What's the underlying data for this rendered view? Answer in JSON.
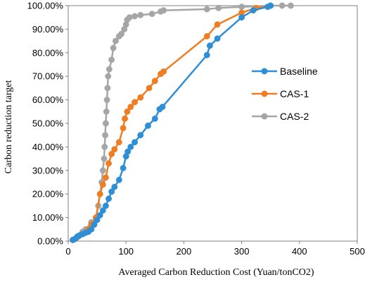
{
  "chart_data": {
    "type": "line",
    "title": "",
    "xlabel": "Averaged  Carbon Reduction Cost (Yuan/tonCO2)",
    "ylabel": "Carbon reduction target",
    "xlim": [
      0,
      500
    ],
    "ylim": [
      0,
      1
    ],
    "x_ticks": [
      "0",
      "100",
      "200",
      "300",
      "400",
      "500"
    ],
    "y_ticks": [
      "0.00%",
      "10.00%",
      "20.00%",
      "30.00%",
      "40.00%",
      "50.00%",
      "60.00%",
      "70.00%",
      "80.00%",
      "90.00%",
      "100.00%"
    ],
    "grid": false,
    "legend_position": "right",
    "series": [
      {
        "name": "Baseline",
        "color": "#2e8fd6",
        "points": [
          [
            8,
            0.005
          ],
          [
            12,
            0.01
          ],
          [
            16,
            0.02
          ],
          [
            20,
            0.025
          ],
          [
            25,
            0.03
          ],
          [
            30,
            0.035
          ],
          [
            35,
            0.04
          ],
          [
            40,
            0.05
          ],
          [
            45,
            0.07
          ],
          [
            50,
            0.09
          ],
          [
            55,
            0.11
          ],
          [
            60,
            0.13
          ],
          [
            65,
            0.15
          ],
          [
            70,
            0.18
          ],
          [
            75,
            0.21
          ],
          [
            80,
            0.23
          ],
          [
            88,
            0.26
          ],
          [
            95,
            0.31
          ],
          [
            100,
            0.36
          ],
          [
            103,
            0.38
          ],
          [
            108,
            0.4
          ],
          [
            115,
            0.42
          ],
          [
            125,
            0.45
          ],
          [
            138,
            0.49
          ],
          [
            150,
            0.52
          ],
          [
            158,
            0.56
          ],
          [
            163,
            0.57
          ],
          [
            240,
            0.79
          ],
          [
            245,
            0.83
          ],
          [
            258,
            0.86
          ],
          [
            300,
            0.95
          ],
          [
            320,
            0.98
          ],
          [
            345,
            0.995
          ],
          [
            350,
            1.0
          ]
        ]
      },
      {
        "name": "CAS-1",
        "color": "#ef7d22",
        "points": [
          [
            8,
            0.005
          ],
          [
            15,
            0.015
          ],
          [
            25,
            0.03
          ],
          [
            35,
            0.05
          ],
          [
            40,
            0.07
          ],
          [
            48,
            0.1
          ],
          [
            55,
            0.2
          ],
          [
            60,
            0.24
          ],
          [
            65,
            0.27
          ],
          [
            70,
            0.33
          ],
          [
            75,
            0.37
          ],
          [
            80,
            0.39
          ],
          [
            88,
            0.42
          ],
          [
            95,
            0.48
          ],
          [
            98,
            0.52
          ],
          [
            102,
            0.55
          ],
          [
            108,
            0.57
          ],
          [
            115,
            0.59
          ],
          [
            125,
            0.61
          ],
          [
            140,
            0.65
          ],
          [
            150,
            0.68
          ],
          [
            160,
            0.71
          ],
          [
            165,
            0.72
          ],
          [
            240,
            0.87
          ],
          [
            258,
            0.92
          ],
          [
            300,
            0.97
          ],
          [
            325,
            0.99
          ],
          [
            350,
            1.0
          ]
        ]
      },
      {
        "name": "CAS-2",
        "color": "#a6a6a6",
        "points": [
          [
            8,
            0.005
          ],
          [
            12,
            0.01
          ],
          [
            18,
            0.02
          ],
          [
            25,
            0.04
          ],
          [
            30,
            0.05
          ],
          [
            40,
            0.08
          ],
          [
            48,
            0.1
          ],
          [
            52,
            0.15
          ],
          [
            55,
            0.2
          ],
          [
            58,
            0.25
          ],
          [
            60,
            0.3
          ],
          [
            62,
            0.35
          ],
          [
            63,
            0.4
          ],
          [
            64,
            0.45
          ],
          [
            65,
            0.5
          ],
          [
            66,
            0.55
          ],
          [
            67,
            0.6
          ],
          [
            68,
            0.65
          ],
          [
            69,
            0.7
          ],
          [
            71,
            0.73
          ],
          [
            75,
            0.77
          ],
          [
            78,
            0.82
          ],
          [
            82,
            0.85
          ],
          [
            88,
            0.87
          ],
          [
            92,
            0.88
          ],
          [
            97,
            0.9
          ],
          [
            100,
            0.92
          ],
          [
            102,
            0.94
          ],
          [
            106,
            0.95
          ],
          [
            115,
            0.955
          ],
          [
            125,
            0.96
          ],
          [
            145,
            0.965
          ],
          [
            160,
            0.975
          ],
          [
            165,
            0.98
          ],
          [
            240,
            0.985
          ],
          [
            260,
            0.99
          ],
          [
            300,
            0.995
          ],
          [
            350,
            1.0
          ],
          [
            370,
            1.0
          ],
          [
            385,
            1.0
          ]
        ]
      }
    ]
  }
}
